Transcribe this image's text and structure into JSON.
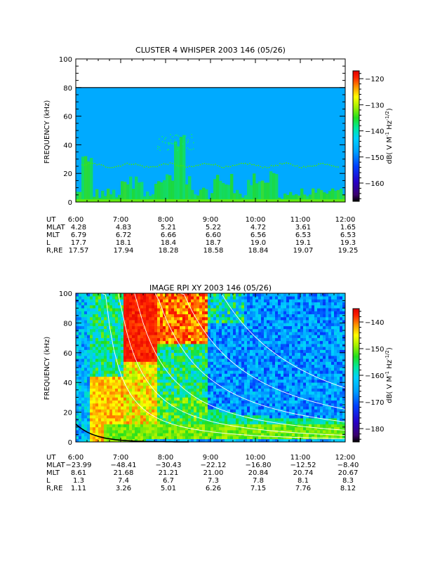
{
  "chart_data": [
    {
      "type": "heatmap",
      "title": "CLUSTER 4 WHISPER 2003 146 (05/26)",
      "ylabel": "FREQUENCY (kHz)",
      "ylim": [
        0,
        100
      ],
      "yticks": [
        "0",
        "20",
        "40",
        "60",
        "80",
        "100"
      ],
      "xlim": [
        "6:00",
        "12:00"
      ],
      "colorbar": {
        "label": "dB( V M⁻¹ Hz⁻¹ᐟ²)",
        "label_parts": [
          "dB( V M",
          "-1",
          " Hz",
          "-1/2",
          ")"
        ],
        "range": [
          -167,
          -117
        ],
        "ticks": [
          "-120",
          "-130",
          "-140",
          "-150",
          "-160"
        ]
      },
      "data_ceiling_khz": 80,
      "background_db": -147,
      "noise_line_khz": 26,
      "ephemeris": {
        "labels": [
          "UT",
          "MLAT",
          "MLT",
          "L",
          "R,RE"
        ],
        "times": [
          "6:00",
          "7:00",
          "8:00",
          "9:00",
          "10:00",
          "11:00",
          "12:00"
        ],
        "rows": [
          [
            "4.28",
            "4.83",
            "5.21",
            "5.22",
            "4.72",
            "3.61",
            "1.65"
          ],
          [
            "6.79",
            "6.72",
            "6.66",
            "6.60",
            "6.56",
            "6.53",
            "6.53"
          ],
          [
            "17.7",
            "18.1",
            "18.4",
            "18.7",
            "19.0",
            "19.1",
            "19.3"
          ],
          [
            "17.57",
            "17.94",
            "18.28",
            "18.58",
            "18.84",
            "19.07",
            "19.25"
          ]
        ]
      }
    },
    {
      "type": "heatmap",
      "title": "IMAGE RPI XY 2003 146 (05/26)",
      "ylabel": "FREQUENCY (kHz)",
      "ylim": [
        0,
        100
      ],
      "yticks": [
        "0",
        "20",
        "40",
        "60",
        "80",
        "100"
      ],
      "xlim": [
        "6:00",
        "12:00"
      ],
      "colorbar": {
        "label": "dB( V M⁻¹ Hz⁻¹ᐟ²)",
        "label_parts": [
          "dB( V M",
          "-1",
          " Hz",
          "-1/2",
          ")"
        ],
        "range": [
          -185,
          -135
        ],
        "ticks": [
          "-140",
          "-150",
          "-160",
          "-170",
          "-180"
        ]
      },
      "ephemeris": {
        "labels": [
          "UT",
          "MLAT",
          "MLT",
          "L",
          "R,RE"
        ],
        "times": [
          "6:00",
          "7:00",
          "8:00",
          "9:00",
          "10:00",
          "11:00",
          "12:00"
        ],
        "rows": [
          [
            "-23.99",
            "-48.41",
            "-30.43",
            "-22.12",
            "-16.80",
            "-12.52",
            "-8.40"
          ],
          [
            "8.61",
            "21.68",
            "21.21",
            "21.00",
            "20.84",
            "20.74",
            "20.67"
          ],
          [
            "1.3",
            "7.4",
            "6.7",
            "7.3",
            "7.8",
            "8.1",
            "8.3"
          ],
          [
            "1.11",
            "3.26",
            "5.01",
            "6.26",
            "7.15",
            "7.76",
            "8.12"
          ]
        ]
      }
    }
  ]
}
